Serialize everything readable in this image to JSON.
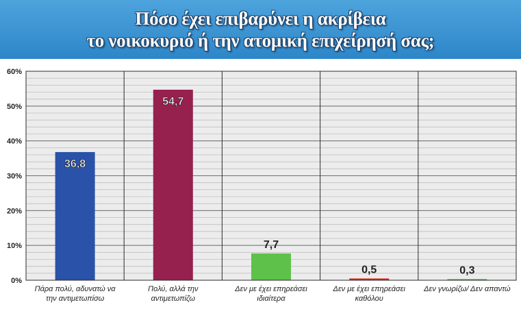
{
  "title": {
    "line1": "Πόσο έχει επιβαρύνει η ακρίβεια",
    "line2": "το νοικοκυριό ή την ατομική επιχείρησή σας;"
  },
  "chart_data": {
    "type": "bar",
    "categories": [
      [
        "Πάρα πολύ, αδυνατώ να",
        "την αντιμετωπίσω"
      ],
      [
        "Πολύ, αλλά την",
        "αντιμετωπίζω"
      ],
      [
        "Δεν με έχει επηρεάσει",
        "ιδιαίτερα"
      ],
      [
        "Δεν με έχει επηρεάσει",
        "καθόλου"
      ],
      [
        "Δεν γνωρίζω/ Δεν απαντώ"
      ]
    ],
    "values": [
      36.8,
      54.7,
      7.7,
      0.5,
      0.3
    ],
    "value_labels": [
      "36,8",
      "54,7",
      "7,7",
      "0,5",
      "0,3"
    ],
    "colors": [
      "#2a52a8",
      "#96204e",
      "#5ec14a",
      "#d42a1a",
      "#4aa83c"
    ],
    "ylim": [
      0,
      60
    ],
    "yticks": [
      0,
      10,
      20,
      30,
      40,
      50,
      60
    ],
    "ytick_labels": [
      "0%",
      "10%",
      "20%",
      "30%",
      "40%",
      "50%",
      "60%"
    ],
    "grid": true
  }
}
